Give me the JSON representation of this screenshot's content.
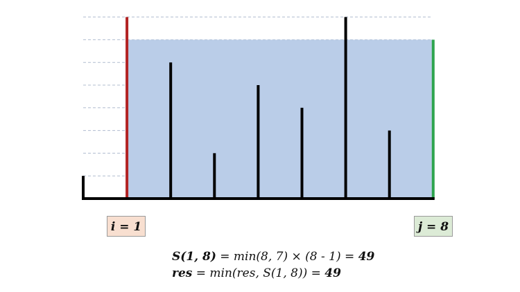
{
  "chart_data": {
    "type": "bar",
    "values": [
      1,
      8,
      6,
      2,
      5,
      4,
      8,
      3,
      7
    ],
    "ylim": [
      0,
      8
    ],
    "grid": true,
    "left_pointer_index": 1,
    "right_pointer_index": 8,
    "water_level": 7
  },
  "colors": {
    "bar": "#000000",
    "left_pointer": "#b22222",
    "right_pointer": "#2ea44f",
    "water": "#bacde8",
    "grid": "#b0bccf",
    "label_i_bg": "#f8dfd0",
    "label_j_bg": "#dcebd6"
  },
  "labels": {
    "i": "i = 1",
    "j": "j = 8"
  },
  "formula": {
    "line1_bold": "S(1, 8)",
    "line1_rest": " = min(8, 7) × (8 - 1) = ",
    "line1_result": "49",
    "line2_bold": "res",
    "line2_rest": " = min(res, S(1, 8)) = ",
    "line2_result": "49"
  }
}
